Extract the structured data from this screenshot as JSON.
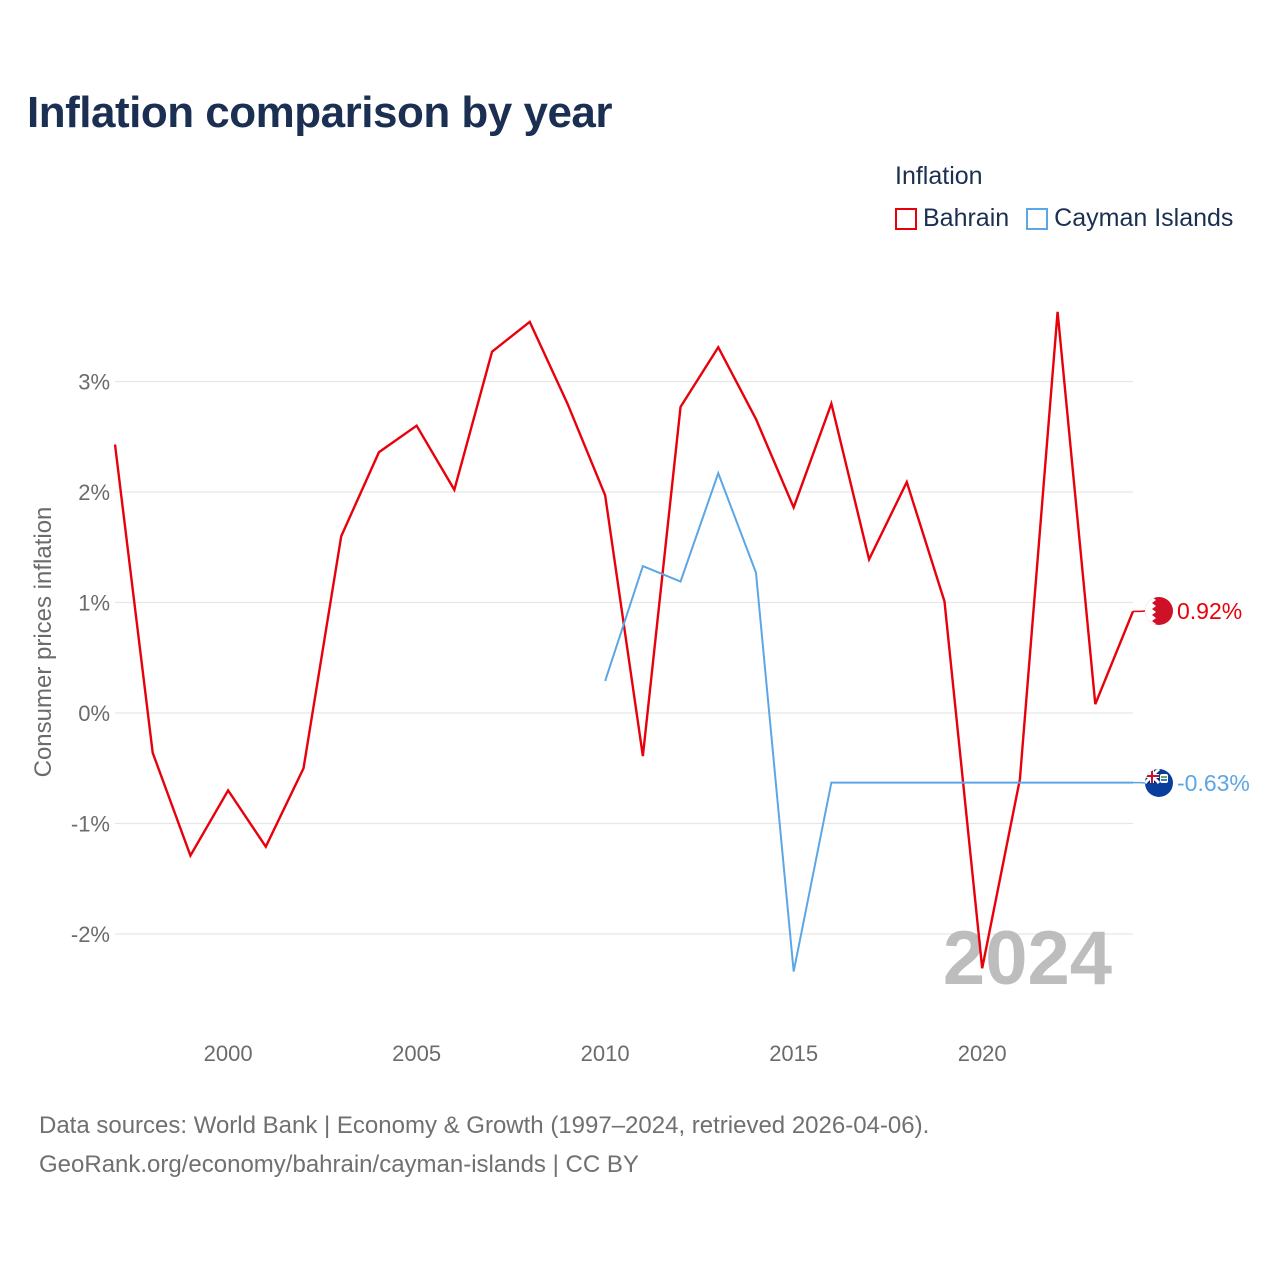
{
  "title": "Inflation comparison by year",
  "legend": {
    "title": "Inflation",
    "items": [
      {
        "label": "Bahrain",
        "color": "#e8000b"
      },
      {
        "label": "Cayman Islands",
        "color": "#5ba6e6"
      }
    ]
  },
  "chart_data": {
    "type": "line",
    "title": "Inflation comparison by year",
    "xlabel": "",
    "ylabel": "Consumer prices inflation",
    "xlim": [
      1997,
      2024
    ],
    "ylim": [
      -2.5,
      3.5
    ],
    "x_ticks": [
      2000,
      2005,
      2010,
      2015,
      2020
    ],
    "y_ticks": [
      -2,
      -1,
      0,
      1,
      2,
      3
    ],
    "y_tick_labels": [
      "-2%",
      "-1%",
      "0%",
      "1%",
      "2%",
      "3%"
    ],
    "grid": true,
    "legend_position": "top-right",
    "year_watermark": "2024",
    "series": [
      {
        "name": "Bahrain",
        "color": "#e8000b",
        "end_label": "0.92%",
        "points": [
          [
            1997,
            2.43
          ],
          [
            1998,
            -0.36
          ],
          [
            1999,
            -1.29
          ],
          [
            2000,
            -0.7
          ],
          [
            2001,
            -1.21
          ],
          [
            2002,
            -0.5
          ],
          [
            2003,
            1.6
          ],
          [
            2004,
            2.36
          ],
          [
            2005,
            2.6
          ],
          [
            2006,
            2.02
          ],
          [
            2007,
            3.27
          ],
          [
            2008,
            3.54
          ],
          [
            2009,
            2.8
          ],
          [
            2010,
            1.97
          ],
          [
            2011,
            -0.39
          ],
          [
            2012,
            2.77
          ],
          [
            2013,
            3.31
          ],
          [
            2014,
            2.66
          ],
          [
            2015,
            1.86
          ],
          [
            2016,
            2.8
          ],
          [
            2017,
            1.39
          ],
          [
            2018,
            2.09
          ],
          [
            2019,
            1.01
          ],
          [
            2020,
            -2.31
          ],
          [
            2021,
            -0.6
          ],
          [
            2022,
            3.63
          ],
          [
            2023,
            0.08
          ],
          [
            2024,
            0.92
          ]
        ]
      },
      {
        "name": "Cayman Islands",
        "color": "#5ba6e6",
        "end_label": "-0.63%",
        "points": [
          [
            2010,
            0.29
          ],
          [
            2011,
            1.33
          ],
          [
            2012,
            1.19
          ],
          [
            2013,
            2.17
          ],
          [
            2014,
            1.27
          ],
          [
            2015,
            -2.34
          ],
          [
            2016,
            -0.63
          ],
          [
            2017,
            -0.63
          ],
          [
            2018,
            -0.63
          ],
          [
            2019,
            -0.63
          ],
          [
            2020,
            -0.63
          ],
          [
            2021,
            -0.63
          ],
          [
            2022,
            -0.63
          ],
          [
            2023,
            -0.63
          ],
          [
            2024,
            -0.63
          ]
        ]
      }
    ]
  },
  "footer": {
    "line1": "Data sources: World Bank | Economy & Growth (1997–2024, retrieved 2026-04-06).",
    "line2": "GeoRank.org/economy/bahrain/cayman-islands | CC BY"
  },
  "icons": {
    "bahrain": "bahrain-flag-icon",
    "cayman": "cayman-islands-flag-icon"
  }
}
